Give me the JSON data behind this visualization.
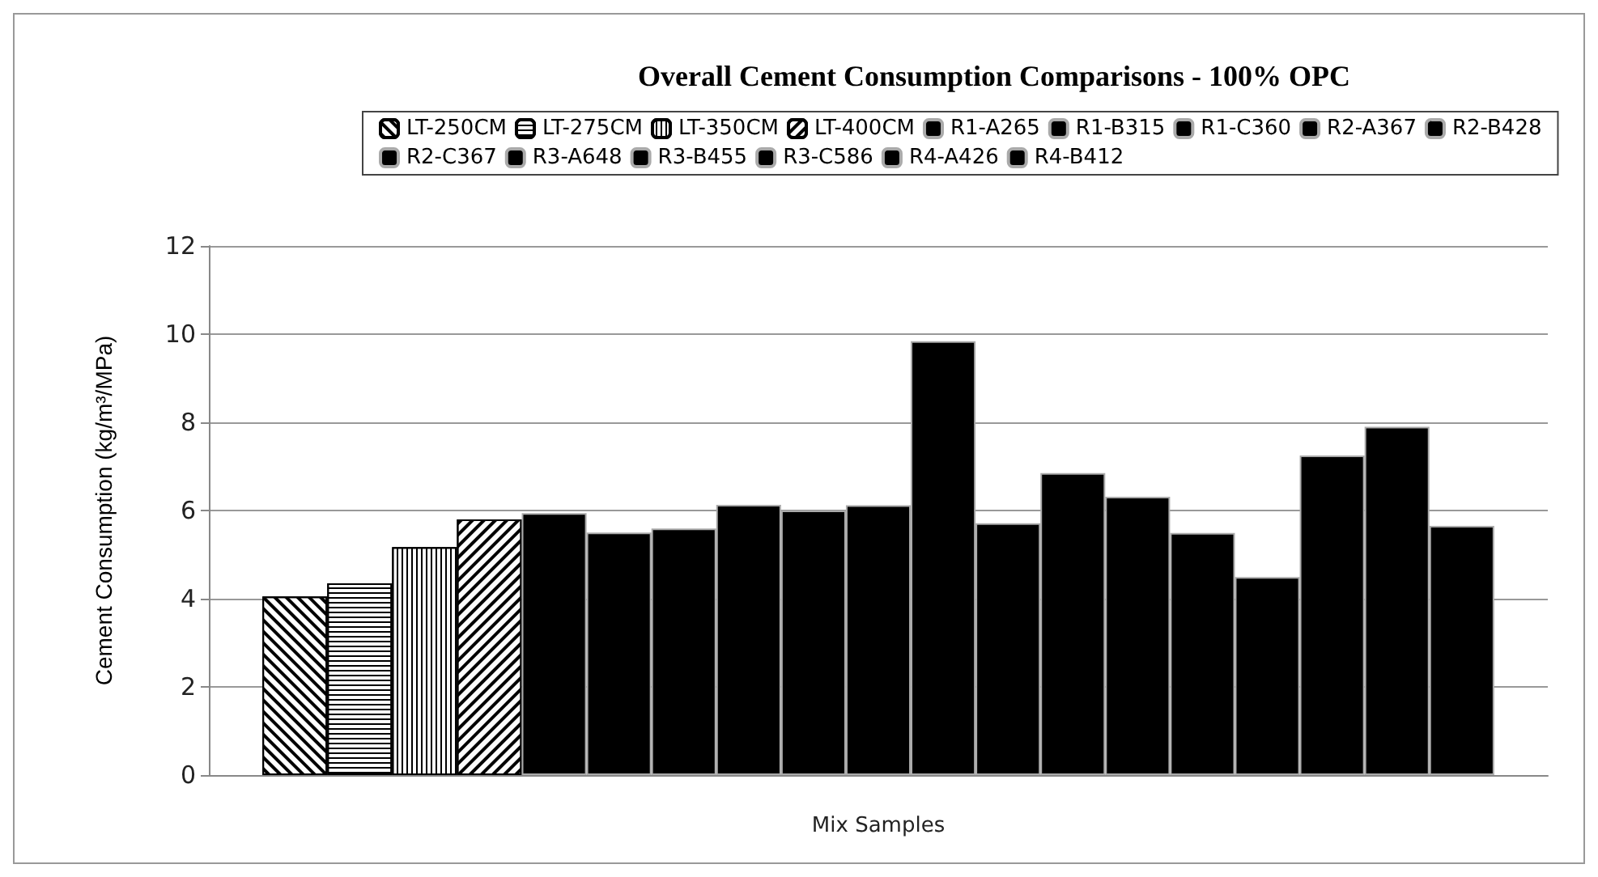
{
  "chart_data": {
    "type": "bar",
    "title": "Overall Cement Consumption Comparisons - 100% OPC",
    "xlabel": "Mix Samples",
    "ylabel": "Cement Consumption (kg/m³/MPa)",
    "categories": [
      null
    ],
    "ylim": [
      0,
      12
    ],
    "yticks": [
      0,
      2,
      4,
      6,
      8,
      10,
      12
    ],
    "grid": "y",
    "legend": "top",
    "series": [
      {
        "name": "LT-250CM",
        "color": "#ffffff",
        "values": [
          4.05
        ]
      },
      {
        "name": "LT-275CM",
        "color": "#fefefe",
        "values": [
          4.35
        ]
      },
      {
        "name": "LT-350CM",
        "color": "#fdfdfd",
        "values": [
          5.17
        ]
      },
      {
        "name": "LT-400CM",
        "color": "#fcfcfc",
        "values": [
          5.8
        ]
      },
      {
        "name": "R1-A265",
        "color": "#000000",
        "values": [
          5.94
        ]
      },
      {
        "name": "R1-B315",
        "color": "#000000",
        "values": [
          5.5
        ]
      },
      {
        "name": "R1-C360",
        "color": "#000000",
        "values": [
          5.59
        ]
      },
      {
        "name": "R2-A367",
        "color": "#000000",
        "values": [
          6.13
        ]
      },
      {
        "name": "R2-B428",
        "color": "#000000",
        "values": [
          6.0
        ]
      },
      {
        "name": "R2-C367",
        "color": "#000000",
        "values": [
          6.12
        ]
      },
      {
        "name": "R3-A648",
        "color": "#000000",
        "values": [
          9.84
        ]
      },
      {
        "name": "R3-B455",
        "color": "#000000",
        "values": [
          5.71
        ]
      },
      {
        "name": "R3-C586",
        "color": "#000000",
        "values": [
          6.85
        ]
      },
      {
        "name": "R4-A426",
        "color": "#000000",
        "values": [
          6.31
        ]
      },
      {
        "name": "R4-B412",
        "color": "#000000",
        "values": [
          5.49
        ]
      },
      {
        "color": "#000000",
        "values": [
          4.49
        ]
      },
      {
        "color": "#000000",
        "values": [
          7.25
        ]
      },
      {
        "color": "#000000",
        "values": [
          7.9
        ]
      },
      {
        "color": "#000000",
        "values": [
          5.65
        ]
      }
    ]
  }
}
